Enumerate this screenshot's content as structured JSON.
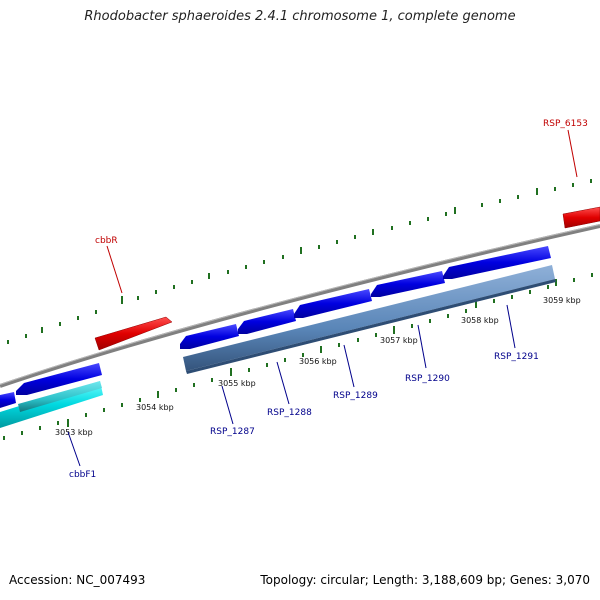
{
  "title": "Rhodobacter sphaeroides 2.4.1 chromosome 1, complete genome",
  "footer": {
    "accession": "Accession: NC_007493",
    "summary": "Topology: circular; Length: 3,188,609 bp; Genes: 3,070"
  },
  "colors": {
    "forward_gene": "#e00000",
    "reverse_gene": "#0000e0",
    "reverse_gene_cyan": "#00d8e0",
    "orf_band": "#5a86b8",
    "orf_band_cyan": "#2ac0c8",
    "backbone": "#808080",
    "tick": "#207020"
  },
  "scale_labels": [
    "3053 kbp",
    "3054 kbp",
    "3055 kbp",
    "3056 kbp",
    "3057 kbp",
    "3058 kbp",
    "3059 kbp"
  ],
  "gene_labels": {
    "rsp_6153": "RSP_6153",
    "cbbr": "cbbR",
    "cbbf1": "cbbF1",
    "rsp_1287": "RSP_1287",
    "rsp_1288": "RSP_1288",
    "rsp_1289": "RSP_1289",
    "rsp_1290": "RSP_1290",
    "rsp_1291": "RSP_1291"
  }
}
